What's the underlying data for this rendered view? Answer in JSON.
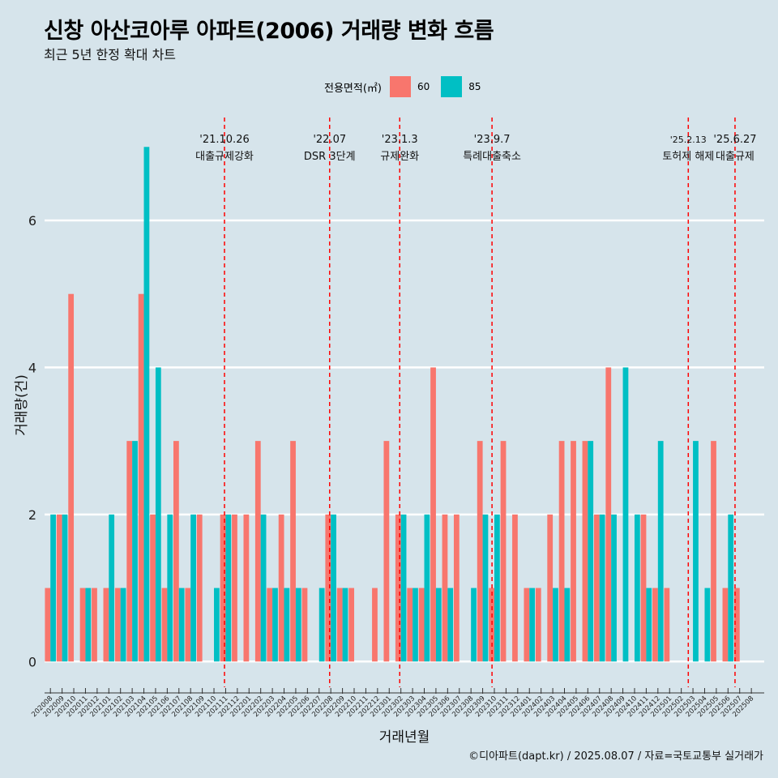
{
  "title": "신창 아산코아루 아파트(2006) 거래량 변화 흐름",
  "subtitle": "최근 5년 한정 확대 차트",
  "caption": "©디아파트(dapt.kr) / 2025.08.07 / 자료=국토교통부 실거래가",
  "legend": {
    "title": "전용면적(㎡)",
    "items": [
      {
        "label": "60",
        "color": "#f8766d"
      },
      {
        "label": "85",
        "color": "#00bfc4"
      }
    ]
  },
  "chart_data": {
    "type": "bar",
    "title": "신창 아산코아루 아파트(2006) 거래량 변화 흐름",
    "xlabel": "거래년월",
    "ylabel": "거래량(건)",
    "ylim": [
      -0.35,
      7.4
    ],
    "yticks": [
      0,
      2,
      4,
      6
    ],
    "categories": [
      "202008",
      "202009",
      "202010",
      "202011",
      "202012",
      "202101",
      "202102",
      "202103",
      "202104",
      "202105",
      "202106",
      "202107",
      "202108",
      "202109",
      "202110",
      "202111",
      "202112",
      "202201",
      "202202",
      "202203",
      "202204",
      "202205",
      "202206",
      "202207",
      "202208",
      "202209",
      "202210",
      "202211",
      "202212",
      "202301",
      "202302",
      "202303",
      "202304",
      "202305",
      "202306",
      "202307",
      "202308",
      "202309",
      "202310",
      "202311",
      "202312",
      "202401",
      "202402",
      "202403",
      "202404",
      "202405",
      "202406",
      "202407",
      "202408",
      "202409",
      "202410",
      "202411",
      "202412",
      "202501",
      "202502",
      "202503",
      "202504",
      "202505",
      "202506",
      "202507",
      "202508"
    ],
    "series": [
      {
        "name": "60",
        "color": "#f8766d",
        "values": [
          1,
          2,
          5,
          1,
          1,
          1,
          1,
          3,
          5,
          2,
          1,
          3,
          1,
          2,
          0,
          2,
          2,
          2,
          3,
          1,
          2,
          3,
          1,
          0,
          2,
          1,
          1,
          0,
          1,
          3,
          2,
          1,
          1,
          4,
          2,
          2,
          0,
          3,
          1,
          3,
          2,
          1,
          1,
          2,
          3,
          3,
          3,
          2,
          4,
          0,
          0,
          2,
          1,
          1,
          0,
          0,
          0,
          3,
          1,
          1,
          0
        ],
        "_note": "values with 0 render no bar"
      },
      {
        "name": "85",
        "color": "#00bfc4",
        "values": [
          2,
          2,
          0,
          1,
          0,
          2,
          1,
          3,
          7,
          4,
          2,
          1,
          2,
          0,
          1,
          2,
          0,
          0,
          2,
          1,
          1,
          1,
          0,
          1,
          2,
          1,
          0,
          0,
          0,
          0,
          2,
          1,
          2,
          1,
          1,
          0,
          1,
          2,
          2,
          0,
          0,
          1,
          0,
          1,
          1,
          0,
          3,
          2,
          2,
          4,
          2,
          1,
          3,
          0,
          0,
          3,
          1,
          0,
          2,
          0,
          0
        ]
      }
    ],
    "events": [
      {
        "index": 14.9,
        "date": "'21.10.26",
        "label": "대출규제강화"
      },
      {
        "index": 23.9,
        "date": "'22.07",
        "label": "DSR 3단계"
      },
      {
        "index": 29.9,
        "date": "'23.1.3",
        "label": "규제완화"
      },
      {
        "index": 37.8,
        "date": "'23.9.7",
        "label": "특례대출축소"
      },
      {
        "index": 54.6,
        "date": "'25.2.13",
        "label": "토허제 해제"
      },
      {
        "index": 58.6,
        "date": "'25.6.27",
        "label": "대출규제"
      }
    ]
  }
}
